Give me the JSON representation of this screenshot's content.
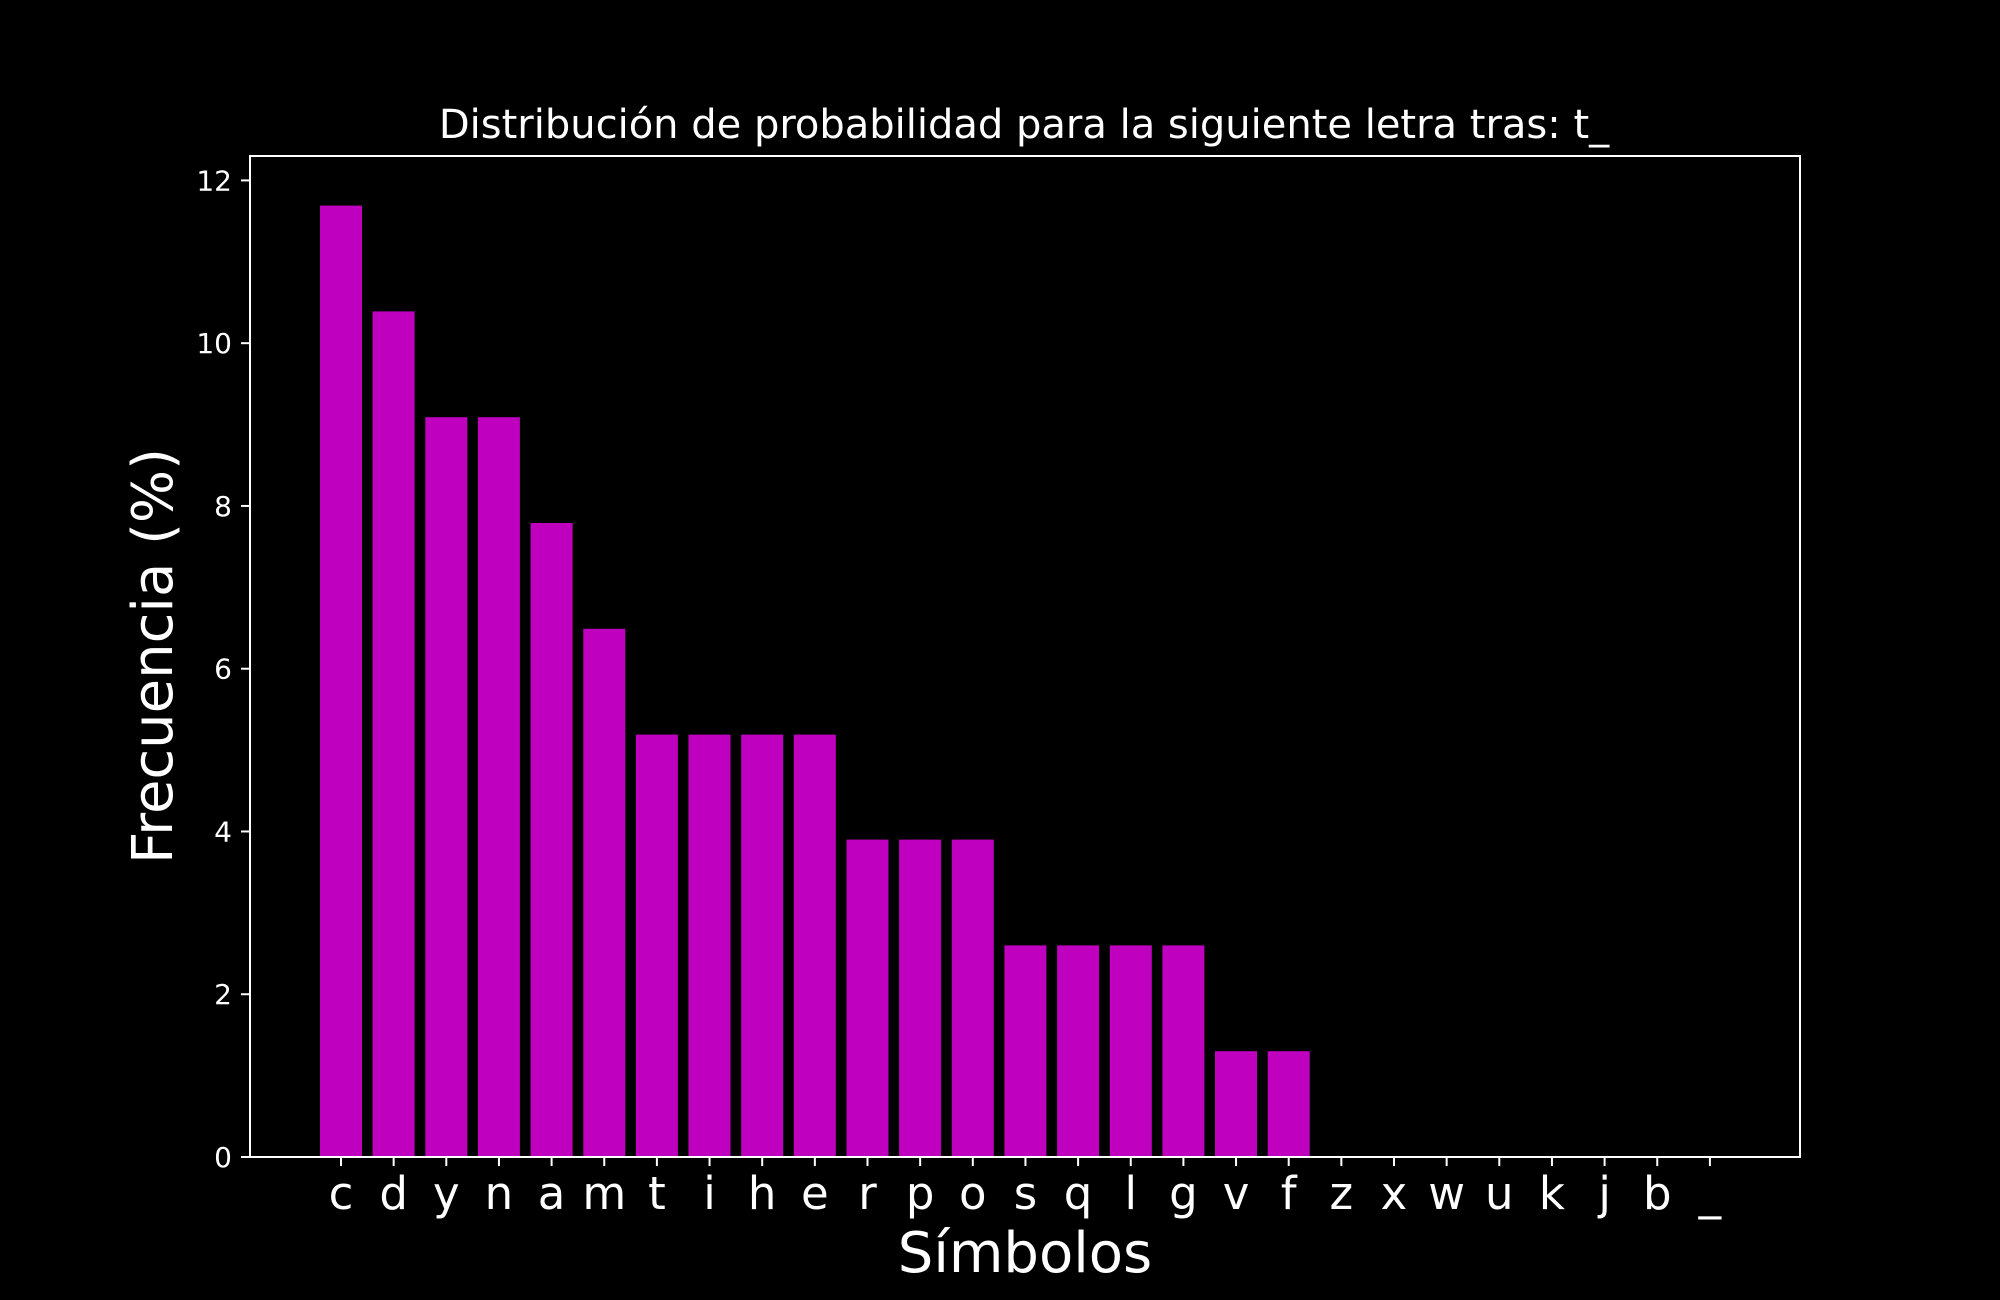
{
  "chart_data": {
    "type": "bar",
    "title": "Distribución de probabilidad para la siguiente letra tras: t_",
    "xlabel": "Símbolos",
    "ylabel": "Frecuencia (%)",
    "ylim": [
      0,
      12.3
    ],
    "yticks": [
      "0",
      "2",
      "4",
      "6",
      "8",
      "10",
      "12"
    ],
    "categories": [
      "c",
      "d",
      "y",
      "n",
      "a",
      "m",
      "t",
      "i",
      "h",
      "e",
      "r",
      "p",
      "o",
      "s",
      "q",
      "l",
      "g",
      "v",
      "f",
      "z",
      "x",
      "w",
      "u",
      "k",
      "j",
      "b",
      "_"
    ],
    "values": [
      11.69,
      10.39,
      9.09,
      9.09,
      7.79,
      6.49,
      5.19,
      5.19,
      5.19,
      5.19,
      3.9,
      3.9,
      3.9,
      2.6,
      2.6,
      2.6,
      2.6,
      1.3,
      1.3,
      0,
      0,
      0,
      0,
      0,
      0,
      0,
      0
    ],
    "bar_color": "#bf00bf",
    "background_color": "#000000",
    "foreground_color": "#ffffff",
    "grid": false,
    "legend": "none"
  }
}
